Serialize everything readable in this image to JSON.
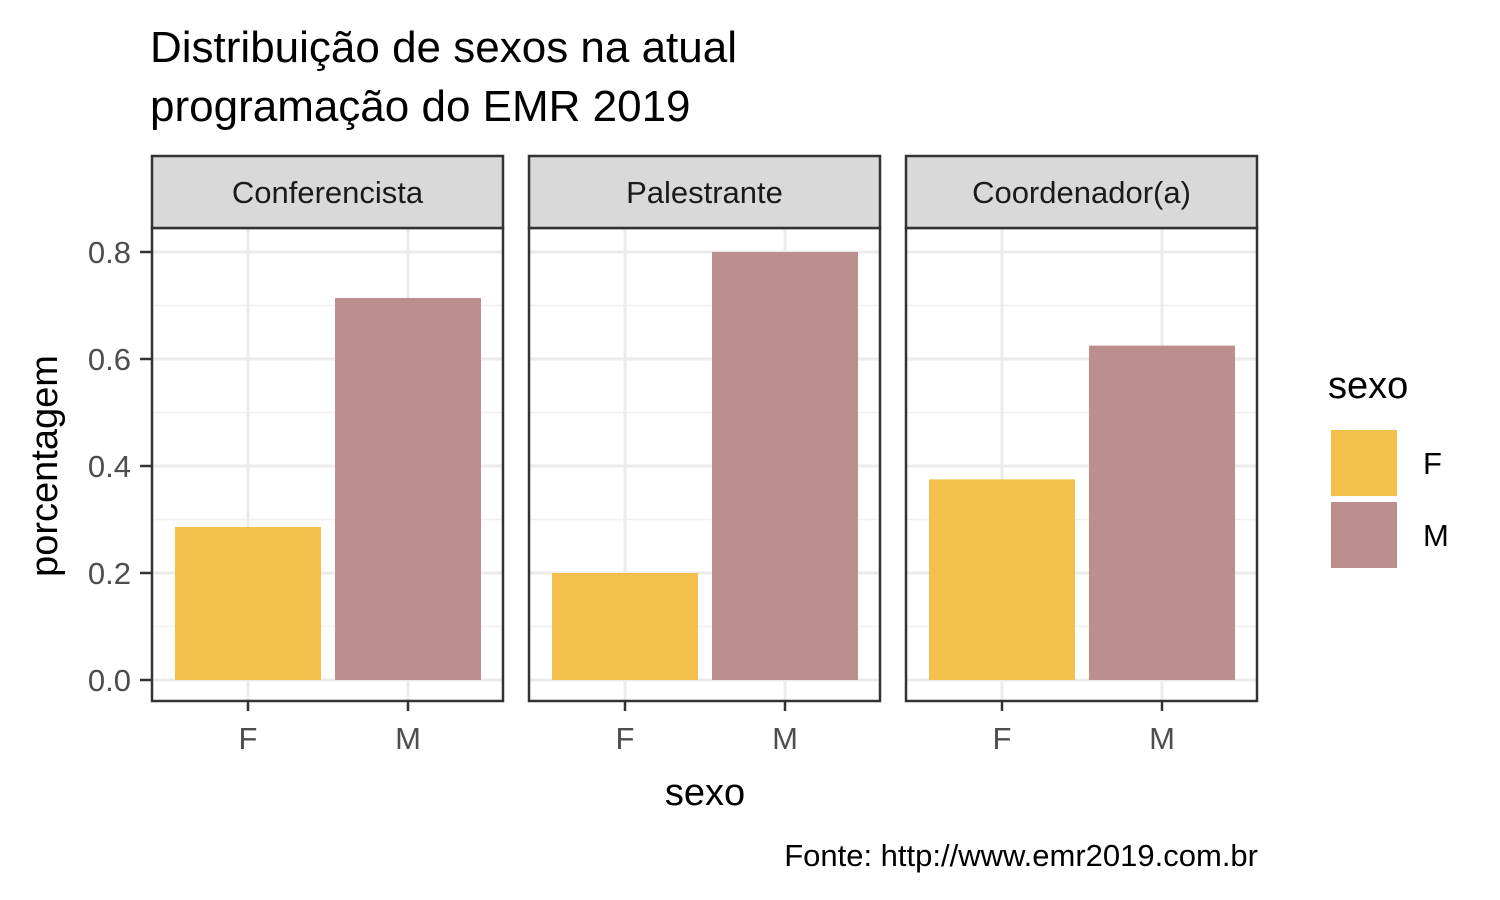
{
  "chart_data": {
    "type": "bar",
    "title_lines": [
      "Distribuição de sexos na atual",
      "programação do EMR 2019"
    ],
    "xlabel": "sexo",
    "ylabel": "porcentagem",
    "caption": "Fonte: http://www.emr2019.com.br",
    "categories": [
      "F",
      "M"
    ],
    "y_ticks": [
      "0.0",
      "0.2",
      "0.4",
      "0.6",
      "0.8"
    ],
    "y_tick_values": [
      0,
      0.2,
      0.4,
      0.6,
      0.8
    ],
    "ylim": [
      0,
      0.84
    ],
    "grid": true,
    "legend": {
      "title": "sexo",
      "position": "right",
      "entries": [
        {
          "label": "F",
          "color": "#F4C04C"
        },
        {
          "label": "M",
          "color": "#BC8E8E"
        }
      ]
    },
    "facets": [
      {
        "label": "Conferencista",
        "values": [
          0.286,
          0.714
        ]
      },
      {
        "label": "Palestrante",
        "values": [
          0.2,
          0.8
        ]
      },
      {
        "label": "Coordenador(a)",
        "values": [
          0.375,
          0.625
        ]
      }
    ]
  }
}
